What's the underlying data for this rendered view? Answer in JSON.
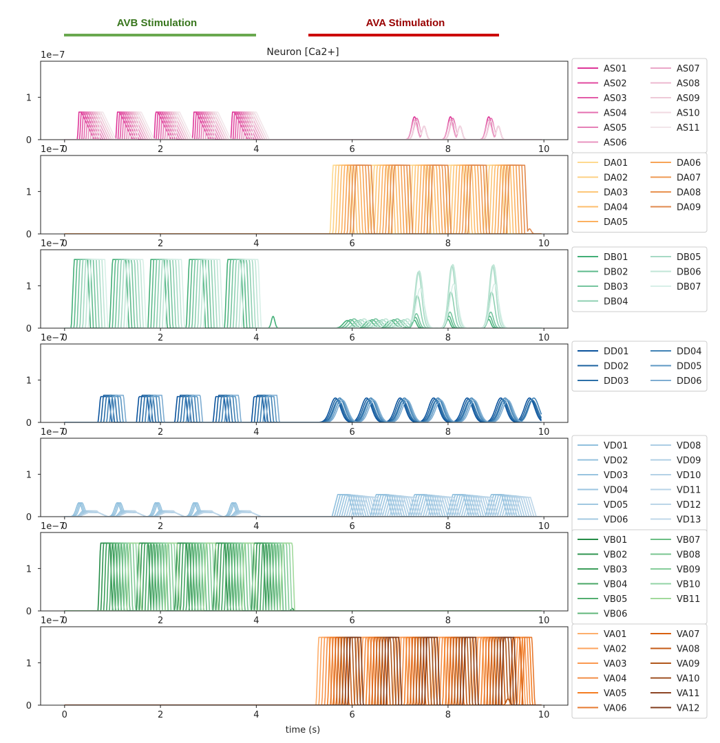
{
  "header": {
    "avb_label": "AVB Stimulation",
    "ava_label": "AVA Stimulation",
    "avb_color": "#6aa84f",
    "ava_color": "#cc0000",
    "avb_text_color": "#38761d",
    "ava_text_color": "#990000",
    "avb_range_s": [
      0,
      4
    ],
    "ava_range_s": [
      5,
      9
    ]
  },
  "figure": {
    "title": "Neuron [Ca2+]",
    "xlabel": "time (s)",
    "offset_label": "1e−7"
  },
  "chart_data": [
    {
      "type": "line",
      "group": "AS",
      "ylim": [
        0,
        1.85
      ],
      "xlim": [
        -0.5,
        10.5
      ],
      "xticks": [
        0,
        2,
        4,
        6,
        8,
        10
      ],
      "yticks": [
        0,
        1
      ],
      "amplitude": 0.65,
      "width": 0.38,
      "neurons": [
        "AS01",
        "AS02",
        "AS03",
        "AS04",
        "AS05",
        "AS06",
        "AS07",
        "AS08",
        "AS09",
        "AS10",
        "AS11"
      ],
      "colors": [
        "#dd3497",
        "#e0489f",
        "#e25ba7",
        "#e46eaf",
        "#e680b7",
        "#e893bf",
        "#eaa5c7",
        "#ecb7cf",
        "#eec9d7",
        "#f0d9e1",
        "#f2e6ea"
      ],
      "bursts_avb": [
        0.3,
        1.1,
        1.9,
        2.7,
        3.5
      ],
      "bursts_ava": [
        7.3,
        8.05,
        8.85
      ],
      "ava_amplitude": 0.6
    },
    {
      "type": "line",
      "group": "DA",
      "ylim": [
        0,
        1.85
      ],
      "xlim": [
        -0.5,
        10.5
      ],
      "xticks": [
        0,
        2,
        4,
        6,
        8,
        10
      ],
      "yticks": [
        0,
        1
      ],
      "amplitude": 1.62,
      "neurons": [
        "DA01",
        "DA02",
        "DA03",
        "DA04",
        "DA05",
        "DA06",
        "DA07",
        "DA08",
        "DA09"
      ],
      "colors": [
        "#fed98e",
        "#fdd083",
        "#fdc677",
        "#fdbc6b",
        "#fcb15f",
        "#f7a456",
        "#ef9a52",
        "#e8914f",
        "#e0884c"
      ],
      "bursts_ava": [
        5.6,
        6.4,
        7.2,
        8.0,
        8.8
      ],
      "final_peak_s": 9.7
    },
    {
      "type": "line",
      "group": "DB",
      "ylim": [
        0,
        1.85
      ],
      "xlim": [
        -0.5,
        10.5
      ],
      "xticks": [
        0,
        2,
        4,
        6,
        8,
        10
      ],
      "yticks": [
        0,
        1
      ],
      "amplitude": 1.62,
      "neurons": [
        "DB01",
        "DB02",
        "DB03",
        "DB04",
        "DB05",
        "DB06",
        "DB07"
      ],
      "colors": [
        "#41ae76",
        "#5bb98a",
        "#74c49e",
        "#8dcfb1",
        "#a6dac4",
        "#bfe5d6",
        "#d7efe7"
      ],
      "bursts_avb": [
        0.2,
        1.0,
        1.8,
        2.6,
        3.4
      ],
      "bursts_ava": [
        7.3,
        8.0,
        8.85
      ],
      "ava_amplitude": 1.58,
      "late_blip_s": 4.35
    },
    {
      "type": "line",
      "group": "DD",
      "ylim": [
        0,
        1.85
      ],
      "xlim": [
        -0.5,
        10.5
      ],
      "xticks": [
        0,
        2,
        4,
        6,
        8,
        10
      ],
      "yticks": [
        0,
        1
      ],
      "amplitude": 0.64,
      "neurons": [
        "DD01",
        "DD02",
        "DD03",
        "DD04",
        "DD05",
        "DD06"
      ],
      "colors": [
        "#08519c",
        "#19609f",
        "#2b6fa8",
        "#3f81b5",
        "#5c97c3",
        "#7eadd2"
      ],
      "bursts_avb": [
        0.75,
        1.55,
        2.35,
        3.15,
        3.95
      ],
      "bursts_ava": [
        5.65,
        6.3,
        7.0,
        7.7,
        8.4,
        9.1,
        9.7
      ]
    },
    {
      "type": "line",
      "group": "VD",
      "ylim": [
        0,
        1.85
      ],
      "xlim": [
        -0.5,
        10.5
      ],
      "xticks": [
        0,
        2,
        4,
        6,
        8,
        10
      ],
      "yticks": [
        0,
        1
      ],
      "amplitude": 0.55,
      "neurons": [
        "VD01",
        "VD02",
        "VD03",
        "VD04",
        "VD05",
        "VD06",
        "VD07",
        "VD08",
        "VD09",
        "VD10",
        "VD11",
        "VD12",
        "VD13"
      ],
      "colors": [
        "#8fbfdd",
        "#93c1de",
        "#97c3df",
        "#9bc5e0",
        "#9fc7e1",
        "#a3c9e2",
        "#a7cbe3",
        "#abcde4",
        "#afcfe5",
        "#b3d1e6",
        "#b7d3e7",
        "#bbd5e8",
        "#bfd7e9"
      ],
      "bursts_avb": [
        0.3,
        1.1,
        1.9,
        2.7,
        3.5
      ],
      "avb_amplitude": 0.33,
      "bursts_ava": [
        5.7,
        6.5,
        7.3,
        8.1,
        8.9
      ]
    },
    {
      "type": "line",
      "group": "VB",
      "ylim": [
        0,
        1.85
      ],
      "xlim": [
        -0.5,
        10.5
      ],
      "xticks": [
        0,
        2,
        4,
        6,
        8,
        10
      ],
      "yticks": [
        0,
        1
      ],
      "amplitude": 1.6,
      "neurons": [
        "VB01",
        "VB02",
        "VB03",
        "VB04",
        "VB05",
        "VB06",
        "VB07",
        "VB08",
        "VB09",
        "VB10",
        "VB11"
      ],
      "colors": [
        "#238b45",
        "#2f9450",
        "#3b9d5a",
        "#47a665",
        "#53ae6f",
        "#5fb67a",
        "#6bbe84",
        "#78c58f",
        "#85cc99",
        "#92d3a4",
        "#a1d99b"
      ],
      "bursts_avb": [
        0.75,
        1.55,
        2.35,
        3.15,
        3.95
      ],
      "late_blip_s": 4.75
    },
    {
      "type": "line",
      "group": "VA",
      "ylim": [
        0,
        1.85
      ],
      "xlim": [
        -0.5,
        10.5
      ],
      "xticks": [
        0,
        2,
        4,
        6,
        8,
        10
      ],
      "yticks": [
        0,
        1
      ],
      "amplitude": 1.6,
      "neurons": [
        "VA01",
        "VA02",
        "VA03",
        "VA04",
        "VA05",
        "VA06",
        "VA07",
        "VA08",
        "VA09",
        "VA10",
        "VA11",
        "VA12"
      ],
      "colors": [
        "#fdae6b",
        "#fca35d",
        "#fb984f",
        "#f28d46",
        "#f47c20",
        "#e6782e",
        "#d95f0e",
        "#c45a14",
        "#b0561a",
        "#9c4f20",
        "#8c4423",
        "#7f3b1b"
      ],
      "bursts_ava": [
        5.3,
        6.1,
        6.9,
        7.7,
        8.5
      ],
      "final_burst_s": 9.35
    }
  ]
}
